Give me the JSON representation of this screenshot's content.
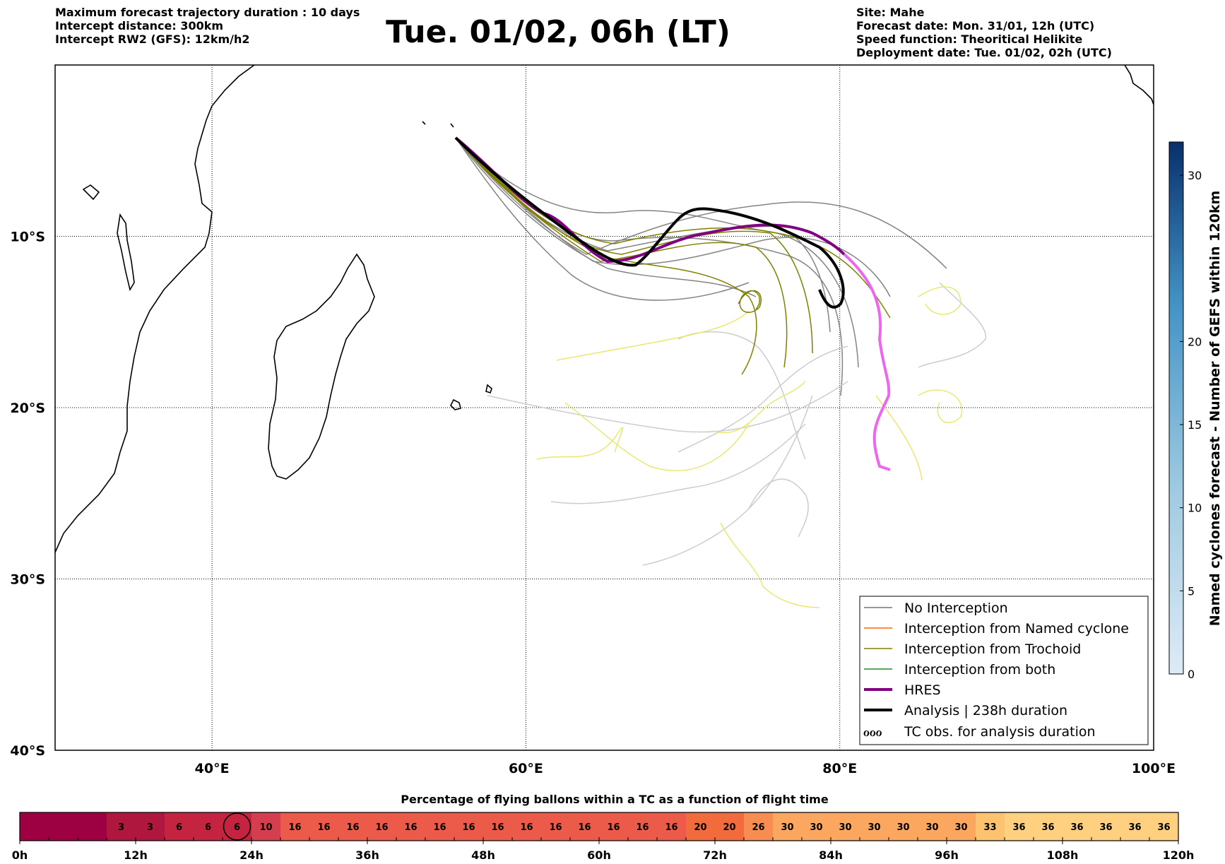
{
  "header_left": {
    "line1": "Maximum forecast trajectory duration : 10 days",
    "line2": "Intercept distance: 300km",
    "line3": "Intercept RW2 (GFS):  12km/h2"
  },
  "title": "Tue. 01/02, 06h (LT)",
  "header_right": {
    "line1": "Site: Mahe",
    "line2": "Forecast date: Mon. 31/01, 12h (UTC)",
    "line3": "Speed function: Theoritical Helikite",
    "line4": "Deployment date: Tue. 01/02, 02h (UTC)"
  },
  "map": {
    "lon_range": [
      30,
      100
    ],
    "lat_range": [
      -40,
      0
    ],
    "lon_ticks": [
      {
        "value": 40,
        "label": "40°E"
      },
      {
        "value": 60,
        "label": "60°E"
      },
      {
        "value": 80,
        "label": "80°E"
      },
      {
        "value": 100,
        "label": "100°E"
      }
    ],
    "lat_ticks": [
      {
        "value": -10,
        "label": "10°S"
      },
      {
        "value": -20,
        "label": "20°S"
      },
      {
        "value": -30,
        "label": "30°S"
      },
      {
        "value": -40,
        "label": "40°S"
      }
    ],
    "grid": "dotted",
    "colors": {
      "no_interception": "#777777",
      "named_cyclone": "#ff6600",
      "trochoid": "#808000",
      "both": "#228B22",
      "hres": "#800080",
      "hres_late": "#ee66ee",
      "analysis": "#000000",
      "tc_obs": "#e8e870",
      "late_track": "#cccccc"
    }
  },
  "legend": {
    "placement": "bottom-right",
    "entries": [
      {
        "label": "No Interception",
        "style": "thin-gray"
      },
      {
        "label": "Interception from Named cyclone",
        "style": "thin-orange"
      },
      {
        "label": "Interception from Trochoid",
        "style": "thin-olive"
      },
      {
        "label": "Interception from both",
        "style": "thin-green"
      },
      {
        "label": "HRES",
        "style": "thick-purple"
      },
      {
        "label": "Analysis | 238h duration",
        "style": "thick-black"
      },
      {
        "label": "TC obs. for analysis duration",
        "style": "loops",
        "symbol": "ℴℴℴ"
      }
    ]
  },
  "colorbar_right": {
    "label": "Named cyclones forecast - Number of GEFS within 120km",
    "range": [
      0,
      32
    ],
    "ticks": [
      {
        "value": 0,
        "label": "0"
      },
      {
        "value": 5,
        "label": "5"
      },
      {
        "value": 10,
        "label": "10"
      },
      {
        "value": 15,
        "label": "15"
      },
      {
        "value": 20,
        "label": "20"
      },
      {
        "value": 30,
        "label": "30"
      }
    ],
    "color_low": "#deebf7",
    "color_high": "#08306b"
  },
  "bottom_bar": {
    "title": "Percentage of flying ballons within a TC as a function of flight time",
    "time_labels": [
      "0h",
      "12h",
      "24h",
      "36h",
      "48h",
      "60h",
      "72h",
      "84h",
      "96h",
      "108h",
      "120h"
    ],
    "cells": [
      "",
      "",
      "",
      "3",
      "3",
      "6",
      "6",
      "6",
      "10",
      "16",
      "16",
      "16",
      "16",
      "16",
      "16",
      "16",
      "16",
      "16",
      "16",
      "16",
      "16",
      "16",
      "16",
      "20",
      "20",
      "26",
      "30",
      "30",
      "30",
      "30",
      "30",
      "30",
      "30",
      "33",
      "36",
      "36",
      "36",
      "36",
      "36",
      "36"
    ],
    "highlight_cell": 7
  }
}
